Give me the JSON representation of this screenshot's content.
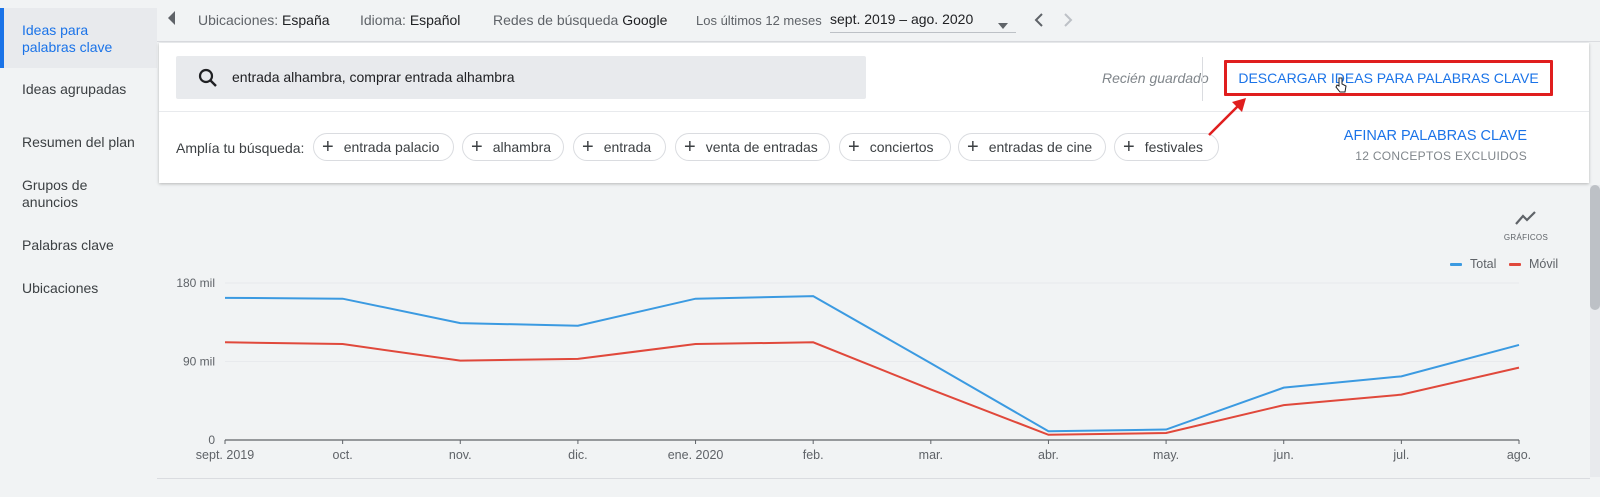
{
  "sidebar": {
    "items": [
      {
        "label": "Ideas para palabras clave",
        "active": true
      },
      {
        "label": "Ideas agrupadas"
      },
      {
        "label": "Resumen del plan"
      },
      {
        "label": "Grupos de anuncios"
      },
      {
        "label": "Palabras clave"
      },
      {
        "label": "Ubicaciones"
      }
    ]
  },
  "topbar": {
    "locations_key": "Ubicaciones:",
    "locations_value": "España",
    "language_key": "Idioma:",
    "language_value": "Español",
    "network_key": "Redes de búsqueda",
    "network_value": "Google",
    "period_key": "Los últimos 12 meses",
    "period_value": "sept. 2019 – ago. 2020"
  },
  "search": {
    "query": "entrada alhambra, comprar entrada alhambra"
  },
  "status": {
    "saved": "Recién guardado"
  },
  "download_button": "DESCARGAR IDEAS PARA PALABRAS CLAVE",
  "broaden": {
    "label": "Amplía tu búsqueda:",
    "chips": [
      "entrada palacio",
      "alhambra",
      "entrada",
      "venta de entradas",
      "conciertos",
      "entradas de cine",
      "festivales"
    ]
  },
  "refine": {
    "title": "AFINAR PALABRAS CLAVE",
    "subtitle": "12 CONCEPTOS EXCLUIDOS"
  },
  "graph_toggle": "GRÁFICOS",
  "colors": {
    "accent": "#1a73e8",
    "total": "#3b9ae1",
    "mobile": "#e0483b",
    "highlight": "#e01e1e"
  },
  "chart_data": {
    "type": "line",
    "categories": [
      "sept. 2019",
      "oct.",
      "nov.",
      "dic.",
      "ene. 2020",
      "feb.",
      "mar.",
      "abr.",
      "may.",
      "jun.",
      "jul.",
      "ago."
    ],
    "series": [
      {
        "name": "Total",
        "values": [
          163000,
          162000,
          134000,
          131000,
          162000,
          165000,
          88000,
          10000,
          12000,
          60000,
          73000,
          109000
        ]
      },
      {
        "name": "Móvil",
        "values": [
          112000,
          110000,
          91000,
          93000,
          110000,
          112000,
          58000,
          6000,
          8000,
          40000,
          52000,
          83000
        ]
      }
    ],
    "yticks": [
      "0",
      "90 mil",
      "180 mil"
    ],
    "ylim": [
      0,
      180000
    ],
    "legend": "top-right",
    "grid": true
  }
}
